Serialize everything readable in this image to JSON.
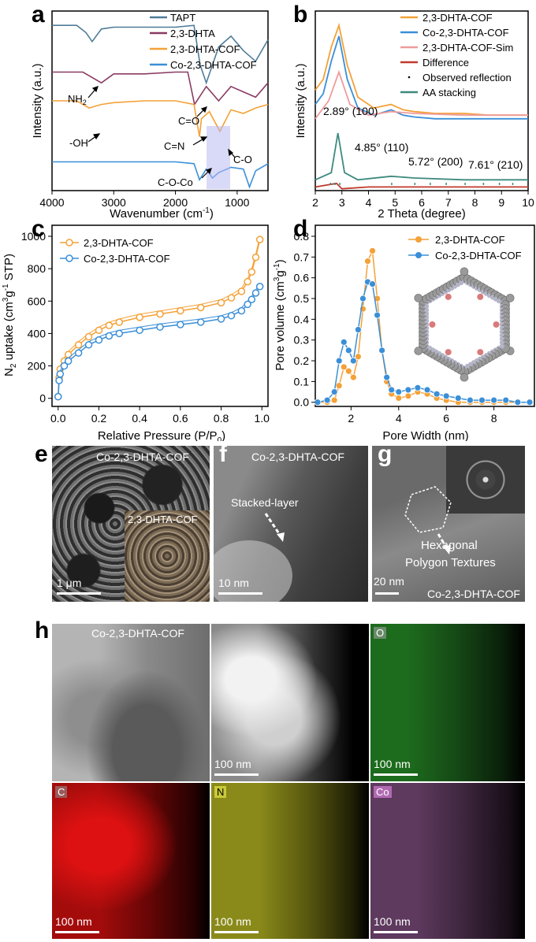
{
  "panels": {
    "a": {
      "letter": "a",
      "xlabel": "Wavenumber (cm",
      "xlabel_sup": "-1",
      "xlabel_end": ")",
      "ylabel": "Intensity (a.u.)",
      "xticks": [
        "4000",
        "3000",
        "2000",
        "1000"
      ],
      "legend": [
        "TAPT",
        "2,3-DHTA",
        "2,3-DHTA-COF",
        "Co-2,3-DHTA-COF"
      ],
      "annotations": [
        "NH",
        "-OH",
        "C=O",
        "C=N",
        "C-O",
        "C-O-Co"
      ],
      "nh_sub": "2"
    },
    "b": {
      "letter": "b",
      "xlabel": "2 Theta (degree)",
      "ylabel": "Intensity (a.u.)",
      "xticks": [
        "2",
        "3",
        "4",
        "5",
        "6",
        "7",
        "8",
        "9",
        "10"
      ],
      "legend": [
        "2,3-DHTA-COF",
        "Co-2,3-DHTA-COF",
        "2,3-DHTA-COF-Sim",
        "Difference",
        "Observed reflection",
        "AA stacking"
      ],
      "peaks": [
        "2.89° (100)",
        "4.85° (110)",
        "5.72° (200)",
        "7.61° (210)"
      ]
    },
    "c": {
      "letter": "c",
      "xlabel": "Relative Pressure (P/P",
      "xlabel_sub": "0",
      "xlabel_end": ")",
      "ylabel": "N uptake (cm g STP)",
      "xticks": [
        "0.0",
        "0.2",
        "0.4",
        "0.6",
        "0.8",
        "1.0"
      ],
      "yticks": [
        "0",
        "200",
        "400",
        "600",
        "800",
        "1000"
      ],
      "legend": [
        "2,3-DHTA-COF",
        "Co-2,3-DHTA-COF"
      ]
    },
    "d": {
      "letter": "d",
      "xlabel": "Pore Width (nm)",
      "ylabel": "Pore volume (cm g )",
      "xticks": [
        "2",
        "4",
        "6",
        "8"
      ],
      "yticks": [
        "0.0",
        "0.1",
        "0.2",
        "0.3",
        "0.4",
        "0.5",
        "0.6",
        "0.7",
        "0.8"
      ],
      "legend": [
        "2,3-DHTA-COF",
        "Co-2,3-DHTA-COF"
      ]
    },
    "e": {
      "letter": "e",
      "title": "Co-2,3-DHTA-COF",
      "inset_title": "2,3-DHTA-COF",
      "scale": "1 μm"
    },
    "f": {
      "letter": "f",
      "title": "Co-2,3-DHTA-COF",
      "note": "Stacked-layer",
      "scale": "10 nm"
    },
    "g": {
      "letter": "g",
      "note1": "Hexagonal",
      "note2": "Polygon Textures",
      "scale": "20 nm",
      "caption": "Co-2,3-DHTA-COF"
    },
    "h": {
      "letter": "h",
      "title": "Co-2,3-DHTA-COF",
      "scale": "100 nm",
      "elements": [
        "O",
        "C",
        "N",
        "Co"
      ]
    }
  },
  "colors": {
    "orange": "#f4a137",
    "blue": "#3a8fd8",
    "tapt": "#4e7c99",
    "dhta": "#8a3b63",
    "sim": "#ef9b9b",
    "diff": "#c0392b",
    "aa": "#3d8a7f",
    "band": "#b9b9f2"
  },
  "chart_data": [
    {
      "type": "line",
      "title": "",
      "xlabel": "Wavenumber (cm-1)",
      "ylabel": "Intensity (a.u.)",
      "xlim": [
        4000,
        500
      ],
      "series": [
        {
          "name": "TAPT",
          "x": [
            4000,
            3600,
            3450,
            3350,
            3200,
            3000,
            2500,
            2000,
            1700,
            1600,
            1500,
            1300,
            1100,
            900,
            700,
            500
          ],
          "y": [
            0.92,
            0.92,
            0.88,
            0.83,
            0.9,
            0.91,
            0.91,
            0.91,
            0.92,
            0.7,
            0.6,
            0.8,
            0.86,
            0.78,
            0.72,
            0.84
          ]
        },
        {
          "name": "2,3-DHTA",
          "x": [
            4000,
            3500,
            3200,
            3000,
            2500,
            2000,
            1800,
            1690,
            1500,
            1300,
            1100,
            900,
            700,
            500
          ],
          "y": [
            0.66,
            0.66,
            0.6,
            0.65,
            0.65,
            0.66,
            0.66,
            0.48,
            0.58,
            0.5,
            0.58,
            0.55,
            0.52,
            0.6
          ]
        },
        {
          "name": "2,3-DHTA-COF",
          "x": [
            4000,
            3600,
            3400,
            3200,
            3000,
            2500,
            2000,
            1700,
            1610,
            1580,
            1450,
            1280,
            1100,
            900,
            700,
            500
          ],
          "y": [
            0.5,
            0.5,
            0.46,
            0.48,
            0.49,
            0.5,
            0.5,
            0.48,
            0.3,
            0.4,
            0.44,
            0.33,
            0.45,
            0.43,
            0.46,
            0.48
          ]
        },
        {
          "name": "Co-2,3-DHTA-COF",
          "x": [
            4000,
            3500,
            3000,
            2500,
            2000,
            1700,
            1610,
            1500,
            1400,
            1300,
            1100,
            900,
            800,
            700,
            500
          ],
          "y": [
            0.16,
            0.16,
            0.16,
            0.16,
            0.16,
            0.15,
            0.06,
            0.12,
            0.07,
            0.1,
            0.13,
            0.12,
            0.02,
            0.11,
            0.15
          ]
        }
      ]
    },
    {
      "type": "line",
      "title": "",
      "xlabel": "2 Theta (degree)",
      "ylabel": "Intensity (a.u.)",
      "xlim": [
        2,
        10
      ],
      "series": [
        {
          "name": "2,3-DHTA-COF",
          "x": [
            2.0,
            2.3,
            2.6,
            2.89,
            3.2,
            3.6,
            4.2,
            4.85,
            5.3,
            5.72,
            6.5,
            7.61,
            8.5,
            10
          ],
          "y": [
            0.56,
            0.62,
            0.8,
            0.92,
            0.7,
            0.52,
            0.46,
            0.48,
            0.45,
            0.44,
            0.43,
            0.43,
            0.42,
            0.42
          ]
        },
        {
          "name": "Co-2,3-DHTA-COF",
          "x": [
            2.0,
            2.3,
            2.6,
            2.89,
            3.2,
            3.6,
            4.2,
            4.85,
            5.3,
            5.72,
            6.5,
            7.61,
            8.5,
            10
          ],
          "y": [
            0.48,
            0.54,
            0.72,
            0.86,
            0.62,
            0.46,
            0.42,
            0.45,
            0.42,
            0.41,
            0.4,
            0.4,
            0.4,
            0.4
          ]
        },
        {
          "name": "2,3-DHTA-COF-Sim",
          "x": [
            2.0,
            2.5,
            2.89,
            3.3,
            4.0,
            4.85,
            5.72,
            7.61,
            10
          ],
          "y": [
            0.4,
            0.5,
            0.66,
            0.48,
            0.42,
            0.44,
            0.43,
            0.42,
            0.42
          ]
        },
        {
          "name": "AA stacking",
          "x": [
            2.0,
            2.6,
            2.85,
            3.1,
            3.6,
            4.85,
            5.72,
            7.61,
            10
          ],
          "y": [
            0.06,
            0.1,
            0.32,
            0.1,
            0.06,
            0.08,
            0.07,
            0.06,
            0.06
          ]
        },
        {
          "name": "Difference",
          "x": [
            2.0,
            2.8,
            3.0,
            4.0,
            6.0,
            8.0,
            10
          ],
          "y": [
            0.02,
            0.04,
            0.01,
            0.02,
            0.02,
            0.02,
            0.02
          ]
        }
      ]
    },
    {
      "type": "scatter",
      "title": "",
      "xlabel": "Relative Pressure (P/P0)",
      "ylabel": "N2 uptake (cm3 g-1 STP)",
      "xlim": [
        -0.03,
        1.03
      ],
      "ylim": [
        -50,
        1000
      ],
      "series": [
        {
          "name": "2,3-DHTA-COF",
          "x": [
            0.0,
            0.005,
            0.01,
            0.03,
            0.05,
            0.1,
            0.15,
            0.2,
            0.25,
            0.3,
            0.4,
            0.5,
            0.6,
            0.7,
            0.8,
            0.85,
            0.9,
            0.93,
            0.95,
            0.97,
            0.99
          ],
          "y": [
            10,
            130,
            180,
            230,
            270,
            330,
            380,
            420,
            450,
            470,
            500,
            520,
            540,
            560,
            590,
            620,
            660,
            720,
            780,
            870,
            980
          ]
        },
        {
          "name": "Co-2,3-DHTA-COF",
          "x": [
            0.0,
            0.005,
            0.01,
            0.03,
            0.05,
            0.1,
            0.15,
            0.2,
            0.25,
            0.3,
            0.4,
            0.5,
            0.6,
            0.7,
            0.8,
            0.85,
            0.9,
            0.93,
            0.95,
            0.97,
            0.99
          ],
          "y": [
            10,
            110,
            150,
            200,
            230,
            280,
            330,
            360,
            385,
            400,
            420,
            440,
            455,
            470,
            490,
            510,
            540,
            580,
            610,
            650,
            690
          ]
        }
      ]
    },
    {
      "type": "scatter",
      "title": "",
      "xlabel": "Pore Width (nm)",
      "ylabel": "Pore volume (cm3 g-1)",
      "xlim": [
        0.5,
        9.7
      ],
      "ylim": [
        -0.02,
        0.8
      ],
      "series": [
        {
          "name": "2,3-DHTA-COF",
          "x": [
            0.6,
            1.0,
            1.3,
            1.5,
            1.7,
            1.9,
            2.1,
            2.3,
            2.5,
            2.7,
            2.9,
            3.1,
            3.3,
            3.5,
            3.7,
            4.0,
            4.4,
            4.8,
            5.2,
            5.6,
            6.0,
            6.5,
            7.0,
            7.5,
            8.0,
            8.5,
            9.0,
            9.5
          ],
          "y": [
            0.0,
            0.0,
            0.01,
            0.08,
            0.17,
            0.15,
            0.12,
            0.22,
            0.45,
            0.68,
            0.73,
            0.5,
            0.25,
            0.1,
            0.04,
            0.02,
            0.03,
            0.05,
            0.04,
            0.02,
            0.01,
            0.0,
            0.0,
            0.0,
            0.0,
            0.0,
            0.0,
            0.0
          ]
        },
        {
          "name": "Co-2,3-DHTA-COF",
          "x": [
            0.6,
            1.0,
            1.3,
            1.5,
            1.7,
            1.9,
            2.1,
            2.3,
            2.5,
            2.7,
            2.9,
            3.1,
            3.3,
            3.5,
            3.7,
            4.0,
            4.4,
            4.8,
            5.2,
            5.6,
            6.0,
            6.5,
            7.0,
            7.5,
            8.0,
            8.5,
            9.0,
            9.5
          ],
          "y": [
            0.0,
            0.01,
            0.05,
            0.2,
            0.29,
            0.25,
            0.2,
            0.35,
            0.5,
            0.58,
            0.57,
            0.42,
            0.25,
            0.12,
            0.06,
            0.05,
            0.06,
            0.07,
            0.06,
            0.04,
            0.03,
            0.02,
            0.01,
            0.01,
            0.01,
            0.01,
            0.0,
            0.0
          ]
        }
      ]
    }
  ]
}
